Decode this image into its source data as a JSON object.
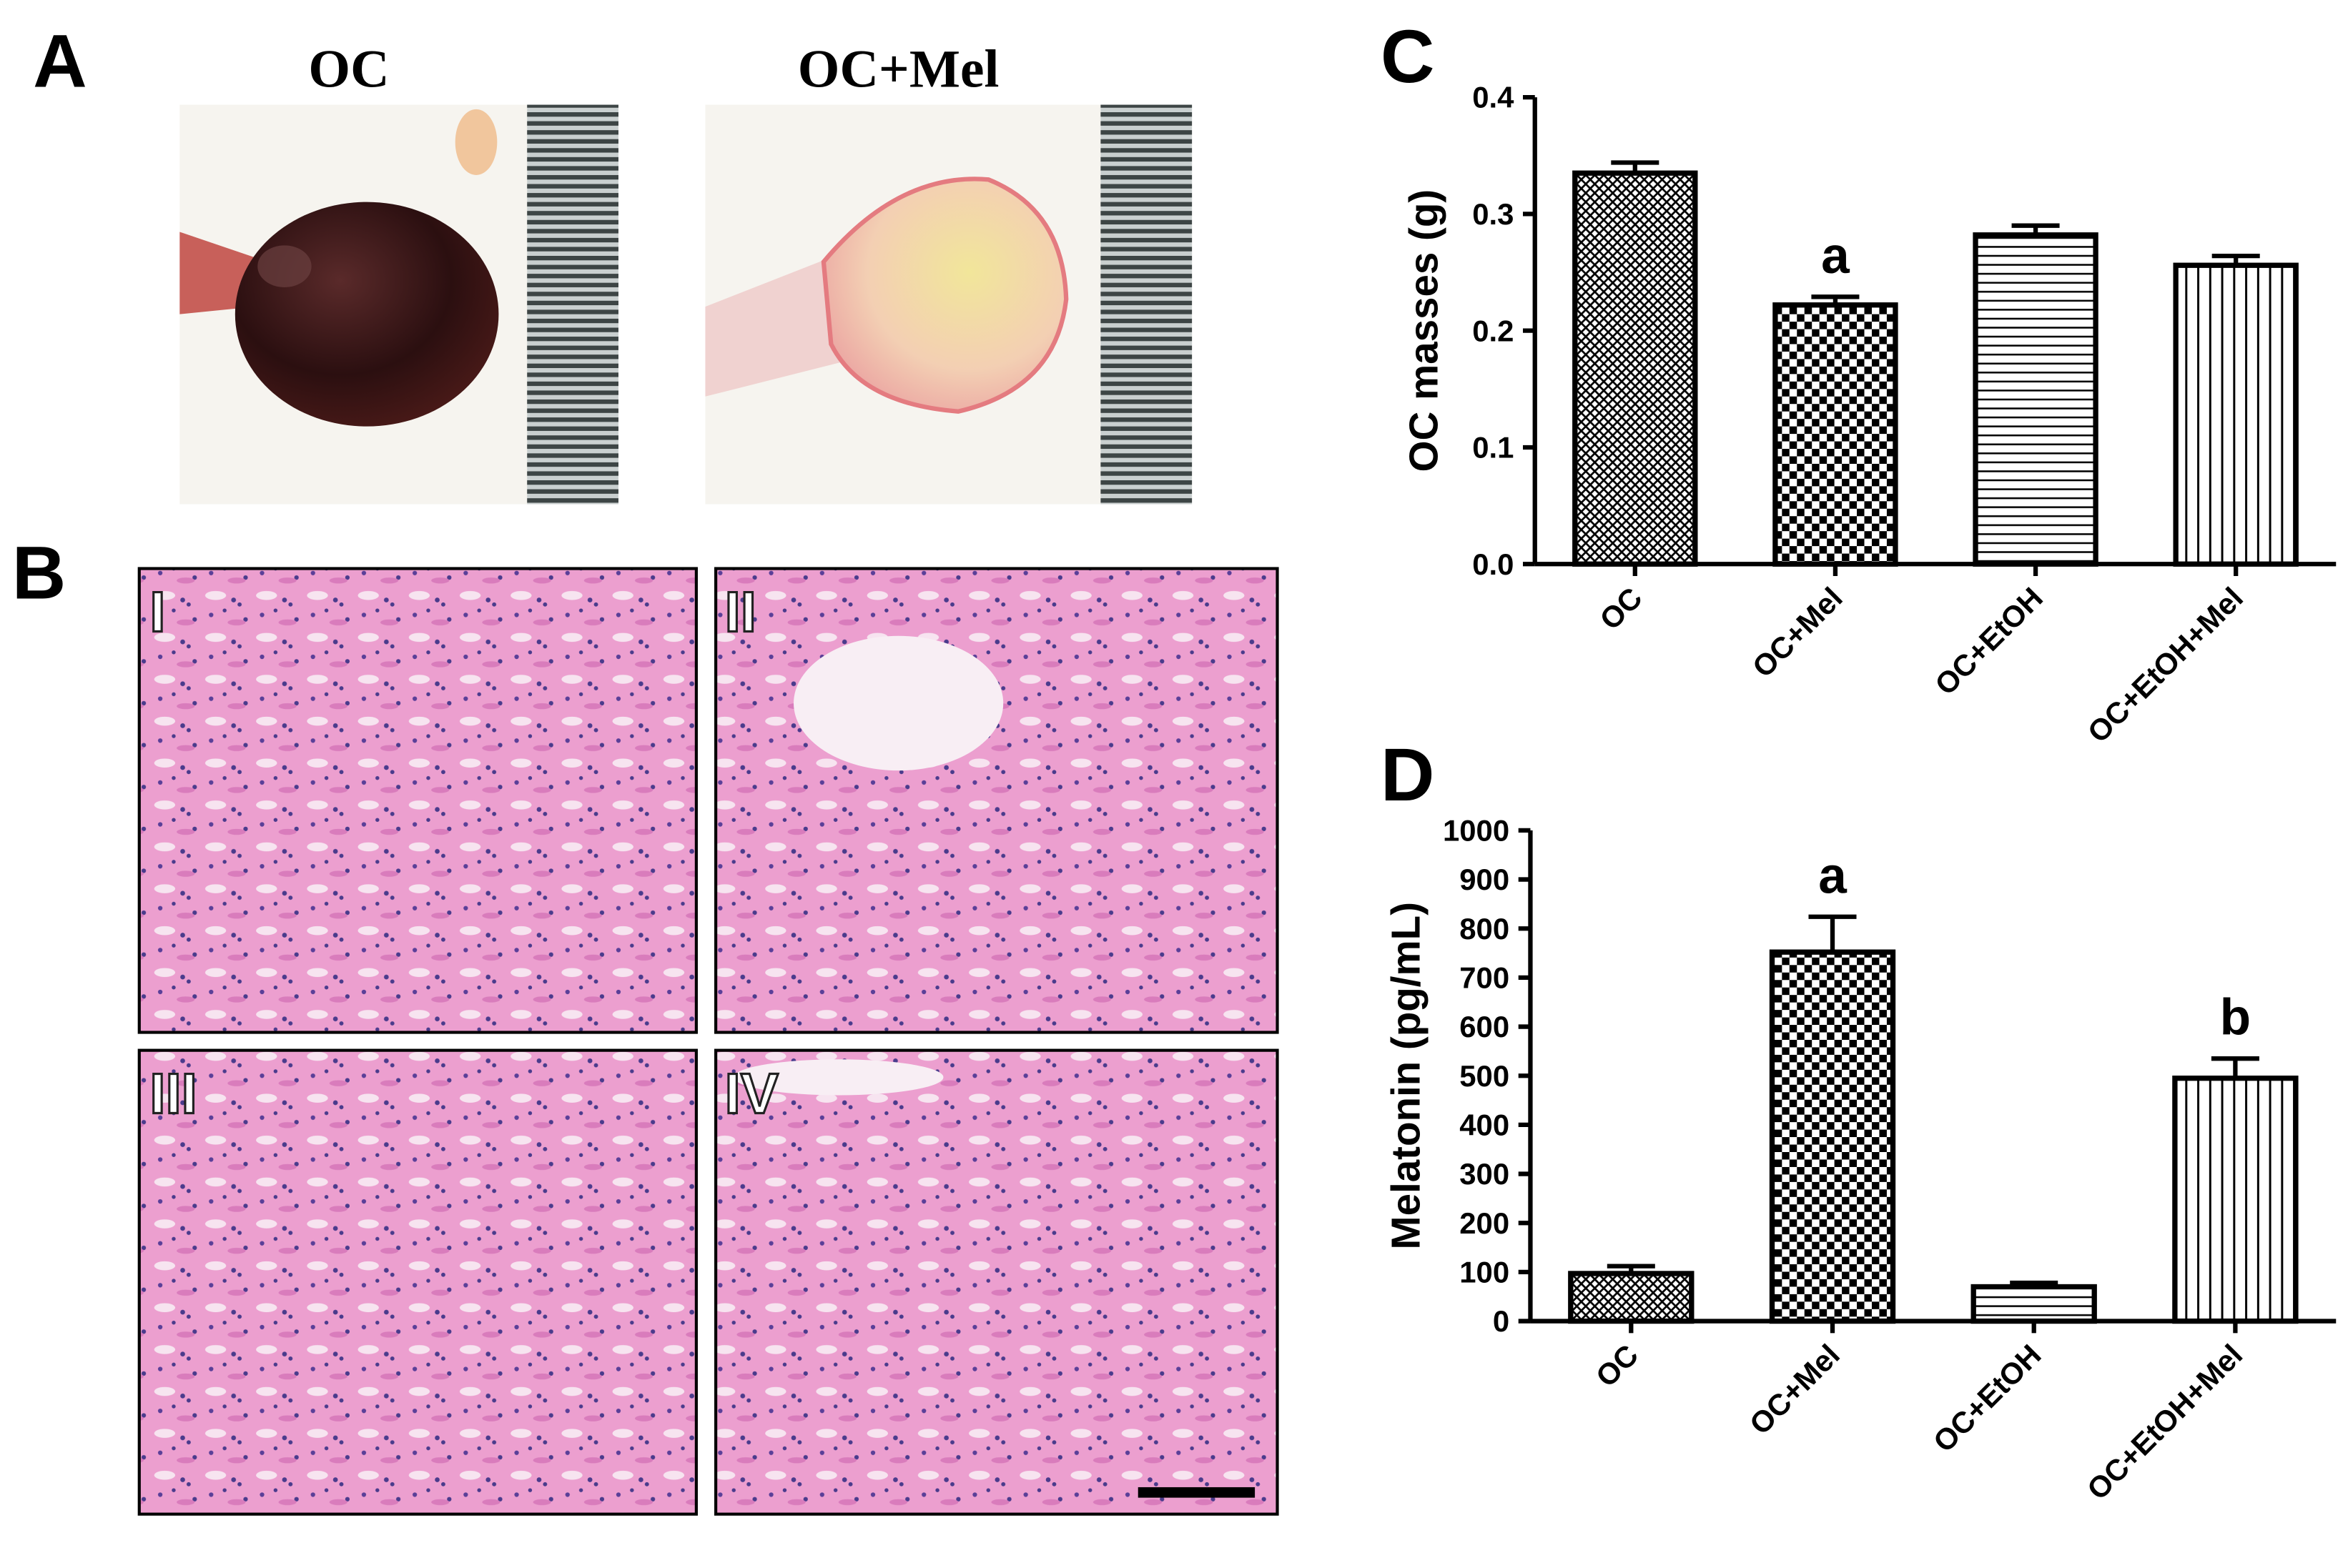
{
  "figure": {
    "panel_labels": [
      "A",
      "B"
    ],
    "photo_labels": [
      "OC",
      "OC+Mel"
    ],
    "histology_labels": [
      "I",
      "II",
      "III",
      "IV"
    ]
  },
  "chart_data": [
    {
      "type": "bar",
      "panel_label": "C",
      "y_label": "OC masses (g)",
      "categories": [
        "OC",
        "OC+Mel",
        "OC+EtOH",
        "OC+EtOH+Mel"
      ],
      "values": [
        0.335,
        0.222,
        0.282,
        0.256
      ],
      "errors": [
        0.009,
        0.007,
        0.008,
        0.008
      ],
      "annotations": [
        null,
        "a",
        null,
        null
      ],
      "patterns": [
        "crosshatch",
        "checker",
        "horizontal",
        "vertical"
      ],
      "color": "#000000",
      "ylim": [
        0,
        0.4
      ],
      "yticks": [
        {
          "value": 0,
          "label": "0.0"
        },
        0.1,
        0.2,
        0.3,
        0.4
      ]
    },
    {
      "type": "bar",
      "panel_label": "D",
      "y_label": "Melatonin (pg/mL)",
      "categories": [
        "OC",
        "OC+Mel",
        "OC+EtOH",
        "OC+EtOH+Mel"
      ],
      "values": [
        97,
        752,
        70,
        495
      ],
      "errors": [
        15,
        72,
        8,
        40
      ],
      "annotations": [
        null,
        "a",
        null,
        "b"
      ],
      "patterns": [
        "crosshatch",
        "checker",
        "horizontal",
        "vertical"
      ],
      "color": "#000000",
      "ylim": [
        0,
        1000
      ],
      "yticks": [
        0,
        100,
        200,
        300,
        400,
        500,
        600,
        700,
        800,
        900,
        1000
      ]
    }
  ]
}
